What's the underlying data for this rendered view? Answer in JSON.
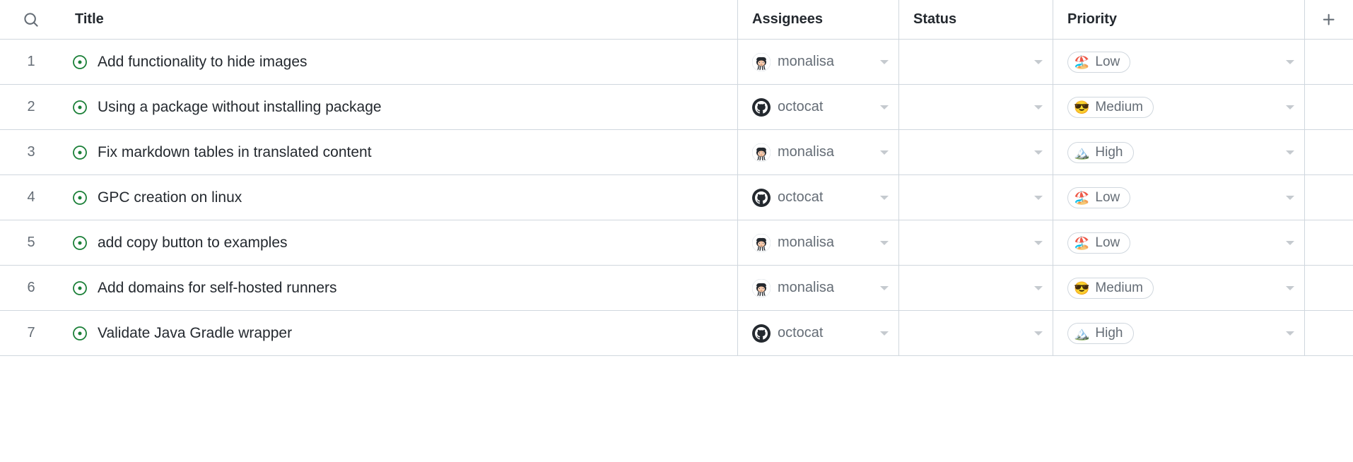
{
  "columns": {
    "title": "Title",
    "assignees": "Assignees",
    "status": "Status",
    "priority": "Priority"
  },
  "priority_types": {
    "Low": {
      "label": "Low",
      "emoji": "🏖️"
    },
    "Medium": {
      "label": "Medium",
      "emoji": "😎"
    },
    "High": {
      "label": "High",
      "emoji": "🏔️"
    }
  },
  "assignee_types": {
    "monalisa": {
      "name": "monalisa",
      "avatar": "monalisa"
    },
    "octocat": {
      "name": "octocat",
      "avatar": "octocat"
    }
  },
  "rows": [
    {
      "num": "1",
      "title": "Add functionality to hide images",
      "assignee": "monalisa",
      "status": "",
      "priority": "Low"
    },
    {
      "num": "2",
      "title": "Using a package without installing package",
      "assignee": "octocat",
      "status": "",
      "priority": "Medium"
    },
    {
      "num": "3",
      "title": "Fix markdown tables in translated content",
      "assignee": "monalisa",
      "status": "",
      "priority": "High"
    },
    {
      "num": "4",
      "title": "GPC creation on linux",
      "assignee": "octocat",
      "status": "",
      "priority": "Low"
    },
    {
      "num": "5",
      "title": "add copy button to examples",
      "assignee": "monalisa",
      "status": "",
      "priority": "Low"
    },
    {
      "num": "6",
      "title": "Add domains for self-hosted runners",
      "assignee": "monalisa",
      "status": "",
      "priority": "Medium"
    },
    {
      "num": "7",
      "title": "Validate Java Gradle wrapper",
      "assignee": "octocat",
      "status": "",
      "priority": "High"
    }
  ],
  "colors": {
    "border": "#d0d7de",
    "text_primary": "#24292f",
    "text_muted": "#656d76",
    "issue_open": "#1a7f37",
    "background": "#ffffff"
  }
}
